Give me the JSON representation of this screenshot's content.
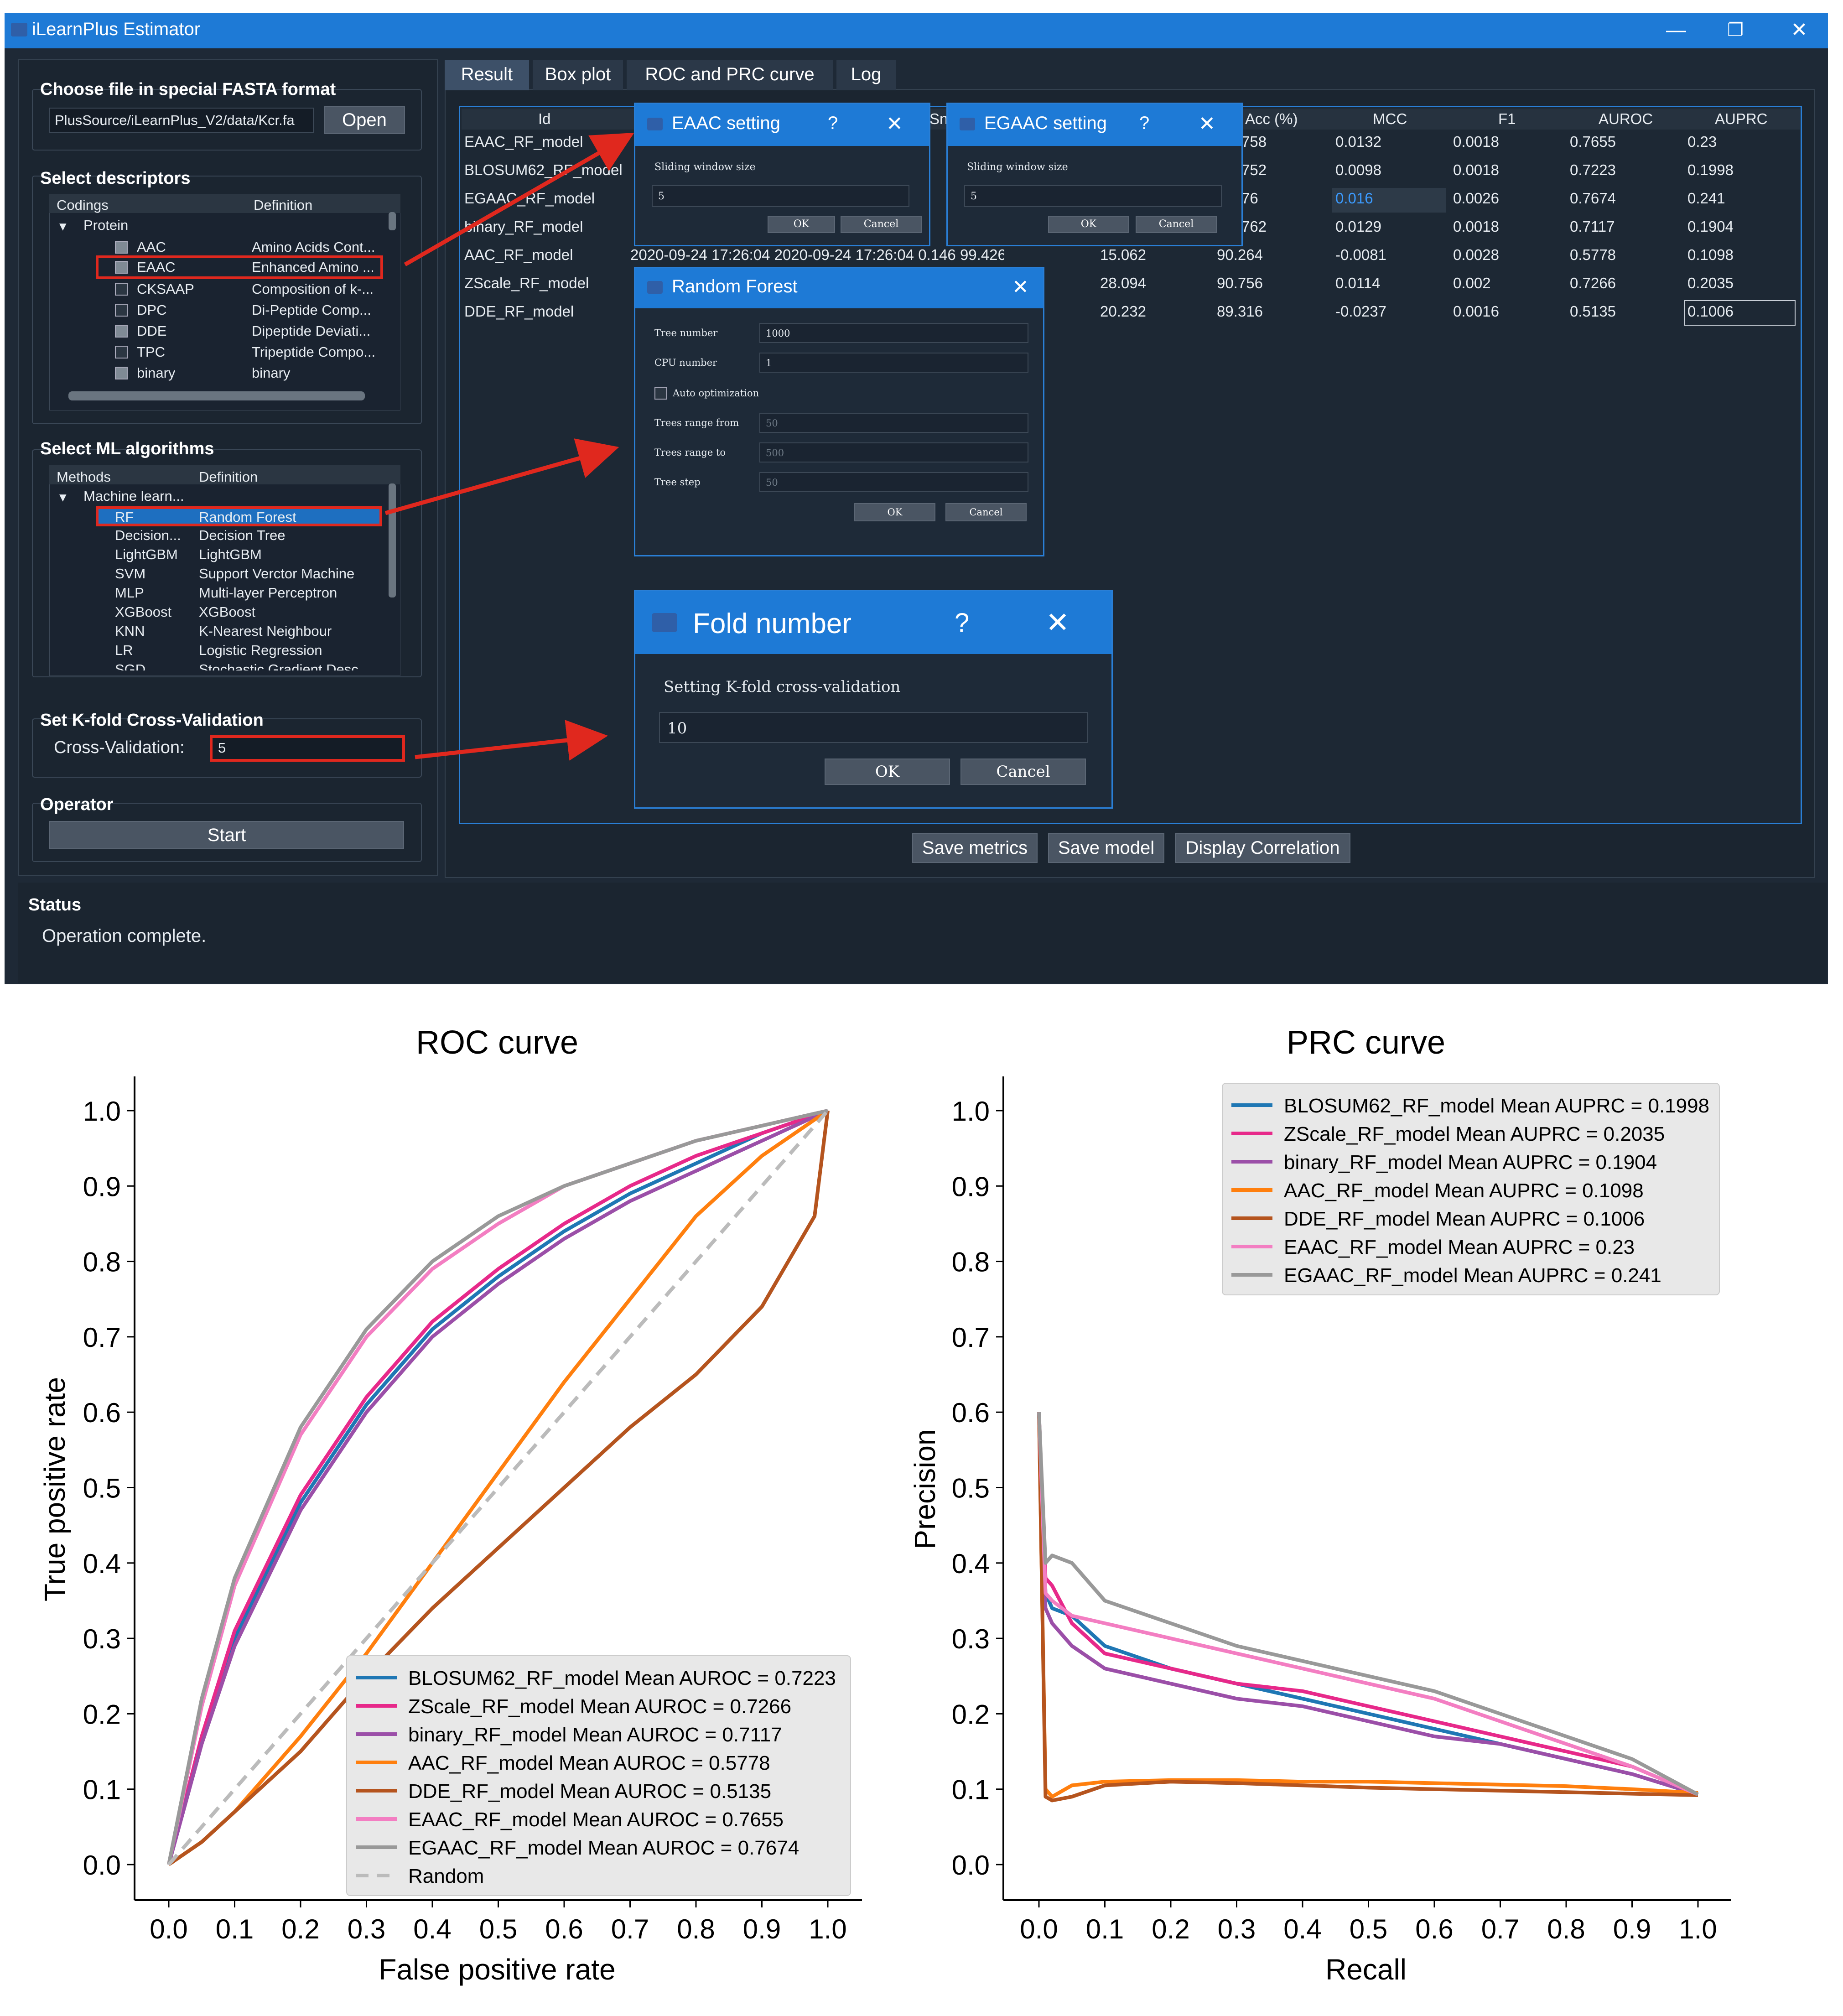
{
  "window": {
    "title": "iLearnPlus Estimator",
    "minimize": "—",
    "restore": "❐",
    "close": "✕"
  },
  "file": {
    "label": "Choose file in special FASTA format",
    "path": "PlusSource/iLearnPlus_V2/data/Kcr.fa",
    "open_button": "Open"
  },
  "descriptors": {
    "label": "Select descriptors",
    "columns": [
      "Codings",
      "Definition"
    ],
    "group": "Protein",
    "items": [
      {
        "name": "AAC",
        "definition": "Amino Acids Cont...",
        "checked": true
      },
      {
        "name": "EAAC",
        "definition": "Enhanced Amino ...",
        "checked": true
      },
      {
        "name": "CKSAAP",
        "definition": "Composition of k-...",
        "checked": false
      },
      {
        "name": "DPC",
        "definition": "Di-Peptide Comp...",
        "checked": false
      },
      {
        "name": "DDE",
        "definition": "Dipeptide Deviati...",
        "checked": true
      },
      {
        "name": "TPC",
        "definition": "Tripeptide Compo...",
        "checked": false
      },
      {
        "name": "binary",
        "definition": "binary",
        "checked": true
      }
    ]
  },
  "ml": {
    "label": "Select ML algorithms",
    "columns": [
      "Methods",
      "Definition"
    ],
    "group": "Machine learn...",
    "items": [
      {
        "name": "RF",
        "definition": "Random Forest"
      },
      {
        "name": "Decision...",
        "definition": "Decision Tree"
      },
      {
        "name": "LightGBM",
        "definition": "LightGBM"
      },
      {
        "name": "SVM",
        "definition": "Support Verctor Machine"
      },
      {
        "name": "MLP",
        "definition": "Multi-layer Perceptron"
      },
      {
        "name": "XGBoost",
        "definition": "XGBoost"
      },
      {
        "name": "KNN",
        "definition": "K-Nearest Neighbour"
      },
      {
        "name": "LR",
        "definition": "Logistic Regression"
      },
      {
        "name": "SGD",
        "definition": "Stochastic Gradient Desc..."
      }
    ]
  },
  "kfold": {
    "label": "Set K-fold Cross-Validation",
    "field_label": "Cross-Validation:",
    "value": "5"
  },
  "operator": {
    "label": "Operator",
    "start": "Start"
  },
  "status": {
    "label": "Status",
    "message": "Operation complete."
  },
  "tabs": [
    "Result",
    "Box plot",
    "ROC and PRC curve",
    "Log"
  ],
  "table": {
    "headers": [
      "Id",
      "Sn",
      "Acc (%)",
      "MCC",
      "F1",
      "AUROC",
      "AUPRC"
    ],
    "rows": [
      {
        "id": "EAAC_RF_model",
        "hidden": "",
        "acc": "758",
        "mcc": "0.0132",
        "f1": "0.0018",
        "auroc": "0.7655",
        "auprc": "0.23"
      },
      {
        "id": "BLOSUM62_RF_model",
        "hidden": "",
        "acc": "752",
        "mcc": "0.0098",
        "f1": "0.0018",
        "auroc": "0.7223",
        "auprc": "0.1998"
      },
      {
        "id": "EGAAC_RF_model",
        "hidden": "",
        "acc": "76",
        "mcc": "0.016",
        "f1": "0.0026",
        "auroc": "0.7674",
        "auprc": "0.241"
      },
      {
        "id": "binary_RF_model",
        "hidden": "",
        "acc": "762",
        "mcc": "0.0129",
        "f1": "0.0018",
        "auroc": "0.7117",
        "auprc": "0.1904"
      },
      {
        "id": "AAC_RF_model",
        "hidden": "2020-09-24 17:26:04  2020-09-24 17:26:04  0.146    99.426",
        "sp": "15.062",
        "acc": "90.264",
        "mcc": "-0.0081",
        "f1": "0.0028",
        "auroc": "0.5778",
        "auprc": "0.1098"
      },
      {
        "id": "ZScale_RF_model",
        "hidden": "",
        "sp": "28.094",
        "acc": "90.756",
        "mcc": "0.0114",
        "f1": "0.002",
        "auroc": "0.7266",
        "auprc": "0.2035"
      },
      {
        "id": "DDE_RF_model",
        "hidden": "",
        "sp": "20.232",
        "acc": "89.316",
        "mcc": "-0.0237",
        "f1": "0.0016",
        "auroc": "0.5135",
        "auprc": "0.1006"
      }
    ]
  },
  "buttons": {
    "save_metrics": "Save metrics",
    "save_model": "Save model",
    "display_correlation": "Display Correlation"
  },
  "eaac_dialog": {
    "title": "EAAC setting",
    "help": "?",
    "close": "✕",
    "field_label": "Sliding window size",
    "value": "5",
    "ok": "OK",
    "cancel": "Cancel"
  },
  "egaac_dialog": {
    "title": "EGAAC setting",
    "help": "?",
    "close": "✕",
    "field_label": "Sliding window size",
    "value": "5",
    "ok": "OK",
    "cancel": "Cancel"
  },
  "rf_dialog": {
    "title": "Random Forest",
    "close": "✕",
    "tree_number_label": "Tree number",
    "tree_number": "1000",
    "cpu_label": "CPU number",
    "cpu": "1",
    "auto_label": "Auto optimization",
    "trees_from_label": "Trees range from",
    "trees_from": "50",
    "trees_to_label": "Trees range to",
    "trees_to": "500",
    "tree_step_label": "Tree step",
    "tree_step": "50",
    "ok": "OK",
    "cancel": "Cancel"
  },
  "fold_dialog": {
    "title": "Fold number",
    "help": "?",
    "close": "✕",
    "field_label": "Setting K-fold cross-validation",
    "value": "10",
    "ok": "OK",
    "cancel": "Cancel"
  },
  "colors": {
    "BLOSUM62": "#1f77b4",
    "ZScale": "#e7298a",
    "binary": "#9b4fa8",
    "AAC": "#ff7f0e",
    "DDE": "#b5541e",
    "EAAC": "#f37ec2",
    "EGAAC": "#999999",
    "Random": "#bbbbbb",
    "red_arrow": "#e0281e",
    "accent": "#1e7ad6"
  },
  "chart_data": [
    {
      "type": "line",
      "title": "ROC curve",
      "xlabel": "False positive rate",
      "ylabel": "True positive rate",
      "xlim": [
        0,
        1
      ],
      "ylim": [
        0,
        1
      ],
      "xticks": [
        "0.0",
        "0.1",
        "0.2",
        "0.3",
        "0.4",
        "0.5",
        "0.6",
        "0.7",
        "0.8",
        "0.9",
        "1.0"
      ],
      "yticks": [
        "0.0",
        "0.1",
        "0.2",
        "0.3",
        "0.4",
        "0.5",
        "0.6",
        "0.7",
        "0.8",
        "0.9",
        "1.0"
      ],
      "legend_position": "lower-right",
      "series": [
        {
          "name": "BLOSUM62_RF_model Mean AUROC = 0.7223",
          "color": "#1f77b4",
          "x": [
            0,
            0.05,
            0.1,
            0.2,
            0.3,
            0.4,
            0.5,
            0.6,
            0.7,
            0.8,
            0.9,
            1.0
          ],
          "y": [
            0,
            0.17,
            0.3,
            0.48,
            0.61,
            0.71,
            0.78,
            0.84,
            0.89,
            0.93,
            0.97,
            1.0
          ]
        },
        {
          "name": "ZScale_RF_model Mean AUROC = 0.7266",
          "color": "#e7298a",
          "x": [
            0,
            0.05,
            0.1,
            0.2,
            0.3,
            0.4,
            0.5,
            0.6,
            0.7,
            0.8,
            0.9,
            1.0
          ],
          "y": [
            0,
            0.17,
            0.31,
            0.49,
            0.62,
            0.72,
            0.79,
            0.85,
            0.9,
            0.94,
            0.97,
            1.0
          ]
        },
        {
          "name": "binary_RF_model Mean AUROC = 0.7117",
          "color": "#9b4fa8",
          "x": [
            0,
            0.05,
            0.1,
            0.2,
            0.3,
            0.4,
            0.5,
            0.6,
            0.7,
            0.8,
            0.9,
            1.0
          ],
          "y": [
            0,
            0.16,
            0.29,
            0.47,
            0.6,
            0.7,
            0.77,
            0.83,
            0.88,
            0.92,
            0.96,
            1.0
          ]
        },
        {
          "name": "AAC_RF_model Mean AUROC = 0.5778",
          "color": "#ff7f0e",
          "x": [
            0,
            0.05,
            0.1,
            0.2,
            0.3,
            0.4,
            0.5,
            0.6,
            0.7,
            0.8,
            0.9,
            1.0
          ],
          "y": [
            0,
            0.03,
            0.07,
            0.17,
            0.28,
            0.4,
            0.52,
            0.64,
            0.75,
            0.86,
            0.94,
            1.0
          ]
        },
        {
          "name": "DDE_RF_model Mean AUROC = 0.5135",
          "color": "#b5541e",
          "x": [
            0,
            0.05,
            0.1,
            0.2,
            0.3,
            0.4,
            0.5,
            0.6,
            0.7,
            0.8,
            0.9,
            0.98,
            1.0
          ],
          "y": [
            0,
            0.03,
            0.07,
            0.15,
            0.25,
            0.34,
            0.42,
            0.5,
            0.58,
            0.65,
            0.74,
            0.86,
            1.0
          ]
        },
        {
          "name": "EAAC_RF_model Mean AUROC = 0.7655",
          "color": "#f37ec2",
          "x": [
            0,
            0.05,
            0.1,
            0.2,
            0.3,
            0.4,
            0.5,
            0.6,
            0.7,
            0.8,
            0.9,
            1.0
          ],
          "y": [
            0,
            0.21,
            0.37,
            0.57,
            0.7,
            0.79,
            0.85,
            0.9,
            0.93,
            0.96,
            0.98,
            1.0
          ]
        },
        {
          "name": "EGAAC_RF_model Mean AUROC = 0.7674",
          "color": "#999999",
          "x": [
            0,
            0.05,
            0.1,
            0.2,
            0.3,
            0.4,
            0.5,
            0.6,
            0.7,
            0.8,
            0.9,
            1.0
          ],
          "y": [
            0,
            0.22,
            0.38,
            0.58,
            0.71,
            0.8,
            0.86,
            0.9,
            0.93,
            0.96,
            0.98,
            1.0
          ]
        },
        {
          "name": "Random",
          "color": "#bbbbbb",
          "dashed": true,
          "x": [
            0,
            1
          ],
          "y": [
            0,
            1
          ]
        }
      ]
    },
    {
      "type": "line",
      "title": "PRC curve",
      "xlabel": "Recall",
      "ylabel": "Precision",
      "xlim": [
        0,
        1
      ],
      "ylim": [
        0,
        1
      ],
      "xticks": [
        "0.0",
        "0.1",
        "0.2",
        "0.3",
        "0.4",
        "0.5",
        "0.6",
        "0.7",
        "0.8",
        "0.9",
        "1.0"
      ],
      "yticks": [
        "0.0",
        "0.1",
        "0.2",
        "0.3",
        "0.4",
        "0.5",
        "0.6",
        "0.7",
        "0.8",
        "0.9",
        "1.0"
      ],
      "legend_position": "top-right",
      "series": [
        {
          "name": "BLOSUM62_RF_model Mean AUPRC = 0.1998",
          "color": "#1f77b4",
          "x": [
            0,
            0.01,
            0.02,
            0.05,
            0.1,
            0.2,
            0.3,
            0.4,
            0.5,
            0.6,
            0.7,
            0.8,
            0.9,
            1.0
          ],
          "y": [
            0.6,
            0.36,
            0.34,
            0.33,
            0.29,
            0.26,
            0.24,
            0.22,
            0.2,
            0.18,
            0.16,
            0.14,
            0.12,
            0.093
          ]
        },
        {
          "name": "ZScale_RF_model Mean AUPRC = 0.2035",
          "color": "#e7298a",
          "x": [
            0,
            0.01,
            0.02,
            0.05,
            0.1,
            0.2,
            0.3,
            0.4,
            0.5,
            0.6,
            0.7,
            0.8,
            0.9,
            1.0
          ],
          "y": [
            0.6,
            0.38,
            0.37,
            0.32,
            0.28,
            0.26,
            0.24,
            0.23,
            0.21,
            0.19,
            0.17,
            0.15,
            0.13,
            0.093
          ]
        },
        {
          "name": "binary_RF_model Mean AUPRC = 0.1904",
          "color": "#9b4fa8",
          "x": [
            0,
            0.01,
            0.02,
            0.05,
            0.1,
            0.2,
            0.3,
            0.4,
            0.5,
            0.6,
            0.7,
            0.8,
            0.9,
            1.0
          ],
          "y": [
            0.6,
            0.34,
            0.32,
            0.29,
            0.26,
            0.24,
            0.22,
            0.21,
            0.19,
            0.17,
            0.16,
            0.14,
            0.12,
            0.093
          ]
        },
        {
          "name": "AAC_RF_model Mean AUPRC = 0.1098",
          "color": "#ff7f0e",
          "x": [
            0,
            0.01,
            0.02,
            0.05,
            0.1,
            0.2,
            0.3,
            0.4,
            0.5,
            0.6,
            0.7,
            0.8,
            0.9,
            1.0
          ],
          "y": [
            0.6,
            0.1,
            0.09,
            0.105,
            0.11,
            0.112,
            0.112,
            0.11,
            0.11,
            0.108,
            0.106,
            0.104,
            0.1,
            0.095
          ]
        },
        {
          "name": "DDE_RF_model Mean AUPRC = 0.1006",
          "color": "#b5541e",
          "x": [
            0,
            0.01,
            0.02,
            0.05,
            0.1,
            0.2,
            0.3,
            0.4,
            0.5,
            0.6,
            0.7,
            0.8,
            0.9,
            1.0
          ],
          "y": [
            0.6,
            0.09,
            0.085,
            0.09,
            0.105,
            0.11,
            0.108,
            0.105,
            0.102,
            0.1,
            0.098,
            0.096,
            0.094,
            0.092
          ]
        },
        {
          "name": "EAAC_RF_model Mean AUPRC = 0.23",
          "color": "#f37ec2",
          "x": [
            0,
            0.01,
            0.02,
            0.05,
            0.1,
            0.2,
            0.3,
            0.4,
            0.5,
            0.6,
            0.7,
            0.8,
            0.9,
            1.0
          ],
          "y": [
            0.6,
            0.36,
            0.35,
            0.33,
            0.32,
            0.3,
            0.28,
            0.26,
            0.24,
            0.22,
            0.19,
            0.16,
            0.13,
            0.093
          ]
        },
        {
          "name": "EGAAC_RF_model Mean AUPRC = 0.241",
          "color": "#999999",
          "x": [
            0,
            0.01,
            0.02,
            0.05,
            0.1,
            0.2,
            0.3,
            0.4,
            0.5,
            0.6,
            0.7,
            0.8,
            0.9,
            1.0
          ],
          "y": [
            0.6,
            0.4,
            0.41,
            0.4,
            0.35,
            0.32,
            0.29,
            0.27,
            0.25,
            0.23,
            0.2,
            0.17,
            0.14,
            0.093
          ]
        }
      ]
    }
  ]
}
